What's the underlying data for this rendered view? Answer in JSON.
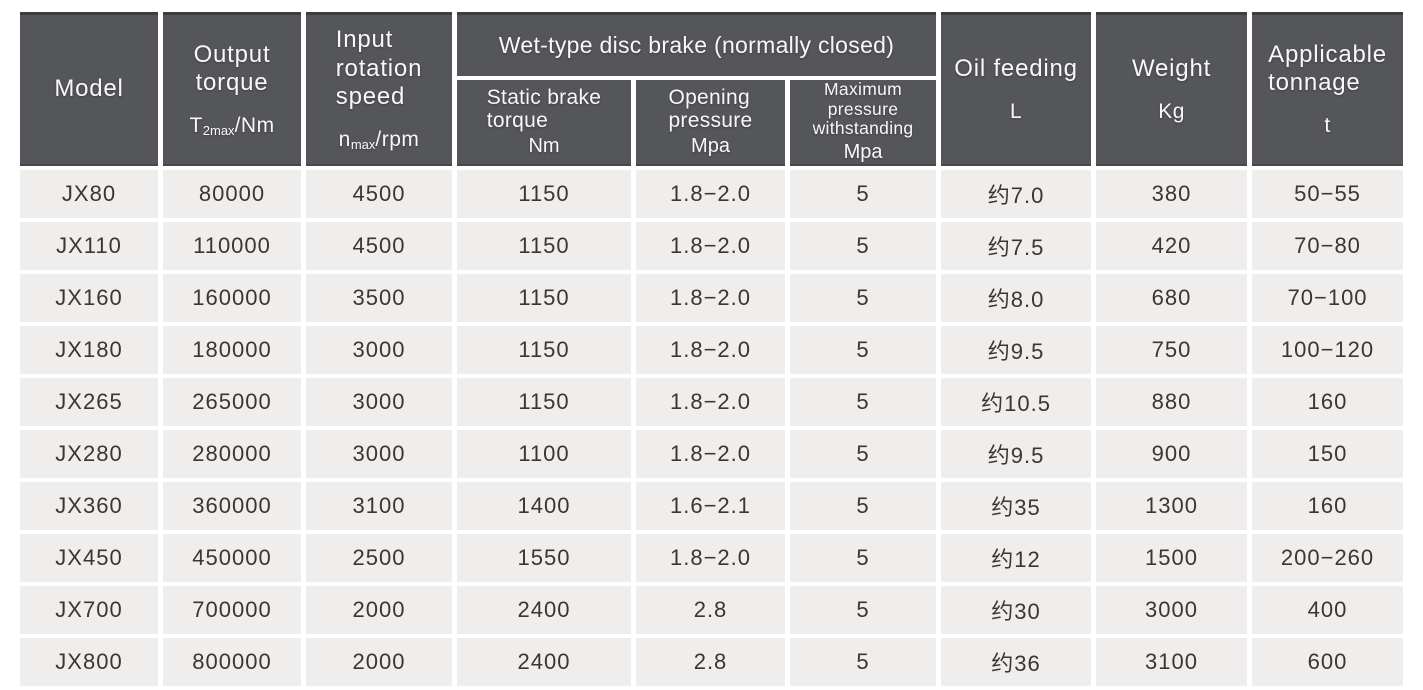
{
  "table": {
    "header": {
      "model": {
        "label": "Model"
      },
      "output_torque": {
        "label": "Output\ntorque",
        "unit_base": "T",
        "unit_sub": "2max",
        "unit_rest": "/Nm"
      },
      "input_speed": {
        "label": "Input\nrotation\nspeed",
        "unit_base": "n",
        "unit_sub": "max",
        "unit_rest": "/rpm"
      },
      "brake_group_label": "Wet-type disc brake (normally closed)",
      "static_brake_torque": {
        "label": "Static brake\ntorque",
        "unit": "Nm"
      },
      "opening_pressure": {
        "label": "Opening\npressure",
        "unit": "Mpa"
      },
      "max_pressure": {
        "label": "Maximum pressure\nwithstanding",
        "unit": "Mpa"
      },
      "oil_feeding": {
        "label": "Oil feeding",
        "unit": "L"
      },
      "weight": {
        "label": "Weight",
        "unit": "Kg"
      },
      "tonnage": {
        "label": "Applicable\ntonnage",
        "unit": "t"
      }
    },
    "column_keys": [
      "model",
      "output-torque",
      "input-rotation-speed",
      "static-brake-torque",
      "opening-pressure",
      "max-pressure-withstanding",
      "oil-feeding",
      "weight",
      "applicable-tonnage"
    ]
  },
  "chart_data": {
    "type": "table",
    "column_groups": [
      {
        "label": "Wet-type disc brake (normally closed)",
        "spans": [
          "Static brake torque Nm",
          "Opening pressure Mpa",
          "Maximum pressure withstanding Mpa"
        ]
      }
    ],
    "columns": [
      "Model",
      "Output torque T2max/Nm",
      "Input rotation speed nmax/rpm",
      "Static brake torque Nm",
      "Opening pressure Mpa",
      "Maximum pressure withstanding Mpa",
      "Oil feeding L",
      "Weight Kg",
      "Applicable tonnage t"
    ],
    "rows": [
      [
        "JX80",
        "80000",
        "4500",
        "1150",
        "1.8−2.0",
        "5",
        "约7.0",
        "380",
        "50−55"
      ],
      [
        "JX110",
        "110000",
        "4500",
        "1150",
        "1.8−2.0",
        "5",
        "约7.5",
        "420",
        "70−80"
      ],
      [
        "JX160",
        "160000",
        "3500",
        "1150",
        "1.8−2.0",
        "5",
        "约8.0",
        "680",
        "70−100"
      ],
      [
        "JX180",
        "180000",
        "3000",
        "1150",
        "1.8−2.0",
        "5",
        "约9.5",
        "750",
        "100−120"
      ],
      [
        "JX265",
        "265000",
        "3000",
        "1150",
        "1.8−2.0",
        "5",
        "约10.5",
        "880",
        "160"
      ],
      [
        "JX280",
        "280000",
        "3000",
        "1100",
        "1.8−2.0",
        "5",
        "约9.5",
        "900",
        "150"
      ],
      [
        "JX360",
        "360000",
        "3100",
        "1400",
        "1.6−2.1",
        "5",
        "约35",
        "1300",
        "160"
      ],
      [
        "JX450",
        "450000",
        "2500",
        "1550",
        "1.8−2.0",
        "5",
        "约12",
        "1500",
        "200−260"
      ],
      [
        "JX700",
        "700000",
        "2000",
        "2400",
        "2.8",
        "5",
        "约30",
        "3000",
        "400"
      ],
      [
        "JX800",
        "800000",
        "2000",
        "2400",
        "2.8",
        "5",
        "约36",
        "3100",
        "600"
      ]
    ]
  },
  "colors": {
    "header_bg": "#55565a",
    "header_top_border": "#3c3d41",
    "header_text": "#f8f8f8",
    "row_bg": "#efeeed",
    "body_text": "#393633",
    "page_bg": "#ffffff"
  }
}
